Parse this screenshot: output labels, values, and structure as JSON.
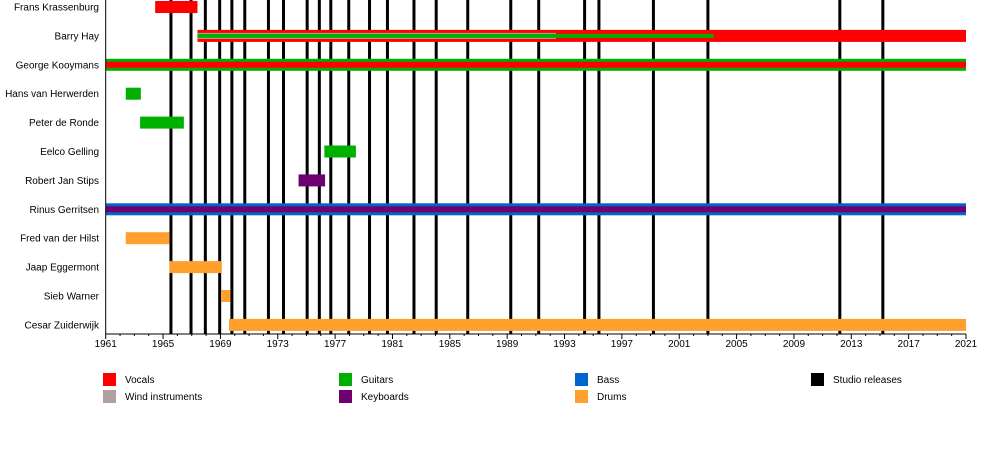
{
  "chart_data": {
    "type": "timeline",
    "x_range": [
      1961,
      2021
    ],
    "x_ticks": [
      "1961",
      "1965",
      "1969",
      "1973",
      "1977",
      "1981",
      "1985",
      "1989",
      "1993",
      "1997",
      "2001",
      "2005",
      "2009",
      "2013",
      "2017",
      "2021"
    ],
    "x_minor_tick_step": 1,
    "colors": {
      "Vocals": "#ff0000",
      "Wind instruments": "#b2a0a0",
      "Guitars": "#00b000",
      "Keyboards": "#6e0070",
      "Bass": "#0066cc",
      "Drums": "#ffa02e",
      "Studio releases": "#000000"
    },
    "members": [
      {
        "name": "Frans Krassenburg",
        "roles": [
          {
            "role": "Vocals",
            "start": 1964.45,
            "end": 1967.4
          }
        ]
      },
      {
        "name": "Barry Hay",
        "roles": [
          {
            "role": "Vocals",
            "start": 1967.4,
            "end": 2021
          },
          {
            "role": "Wind instruments",
            "start": 1967.4,
            "end": 1992.4
          },
          {
            "role": "Guitars",
            "start": 1967.4,
            "end": 2003.4
          }
        ]
      },
      {
        "name": "George Kooymans",
        "roles": [
          {
            "role": "Guitars",
            "start": 1961,
            "end": 2021
          },
          {
            "role": "Vocals",
            "start": 1961,
            "end": 2021
          }
        ]
      },
      {
        "name": "Hans van Herwerden",
        "roles": [
          {
            "role": "Guitars",
            "start": 1962.4,
            "end": 1963.45
          }
        ]
      },
      {
        "name": "Peter de Ronde",
        "roles": [
          {
            "role": "Guitars",
            "start": 1963.4,
            "end": 1966.45
          }
        ]
      },
      {
        "name": "Eelco Gelling",
        "roles": [
          {
            "role": "Guitars",
            "start": 1976.25,
            "end": 1978.45
          }
        ]
      },
      {
        "name": "Robert Jan Stips",
        "roles": [
          {
            "role": "Keyboards",
            "start": 1974.45,
            "end": 1976.3
          }
        ]
      },
      {
        "name": "Rinus Gerritsen",
        "roles": [
          {
            "role": "Bass",
            "start": 1961,
            "end": 2021
          },
          {
            "role": "Keyboards",
            "start": 1961,
            "end": 2021
          }
        ]
      },
      {
        "name": "Fred van der Hilst",
        "roles": [
          {
            "role": "Drums",
            "start": 1962.4,
            "end": 1965.45
          }
        ]
      },
      {
        "name": "Jaap Eggermont",
        "roles": [
          {
            "role": "Drums",
            "start": 1965.45,
            "end": 1969.1
          }
        ]
      },
      {
        "name": "Sieb Warner",
        "roles": [
          {
            "role": "Drums",
            "start": 1969.05,
            "end": 1969.7
          }
        ]
      },
      {
        "name": "Cesar Zuiderwijk",
        "roles": [
          {
            "role": "Drums",
            "start": 1969.6,
            "end": 2021
          }
        ]
      }
    ],
    "studio_releases": [
      1965.55,
      1966.95,
      1967.95,
      1968.95,
      1969.8,
      1970.7,
      1972.35,
      1973.4,
      1975.05,
      1975.9,
      1976.7,
      1977.95,
      1979.4,
      1980.65,
      1982.5,
      1984.05,
      1986.25,
      1989.25,
      1991.2,
      1994.4,
      1995.4,
      1999.2,
      2003.0,
      2012.2,
      2015.2
    ],
    "legend": [
      {
        "label": "Vocals",
        "key": "Vocals"
      },
      {
        "label": "Wind instruments",
        "key": "Wind instruments"
      },
      {
        "label": "Guitars",
        "key": "Guitars"
      },
      {
        "label": "Keyboards",
        "key": "Keyboards"
      },
      {
        "label": "Bass",
        "key": "Bass"
      },
      {
        "label": "Drums",
        "key": "Drums"
      },
      {
        "label": "Studio releases",
        "key": "Studio releases"
      }
    ],
    "legend_placement": "bottom",
    "grid": false
  }
}
